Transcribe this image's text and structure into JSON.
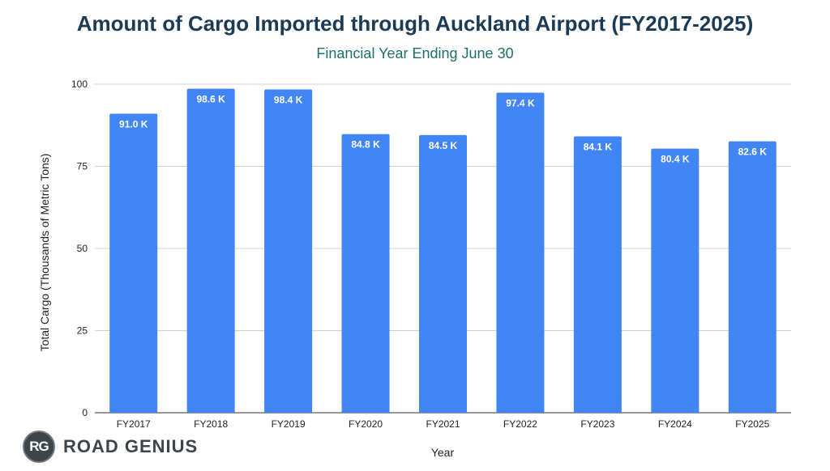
{
  "chart_data": {
    "type": "bar",
    "title": "Amount of Cargo Imported through Auckland Airport (FY2017-2025)",
    "subtitle": "Financial Year Ending June 30",
    "xlabel": "Year",
    "ylabel": "Total Cargo (Thousands of Metric Tons)",
    "categories": [
      "FY2017",
      "FY2018",
      "FY2019",
      "FY2020",
      "FY2021",
      "FY2022",
      "FY2023",
      "FY2024",
      "FY2025"
    ],
    "values": [
      91.0,
      98.6,
      98.4,
      84.8,
      84.5,
      97.4,
      84.1,
      80.4,
      82.6
    ],
    "data_labels": [
      "91.0 K",
      "98.6 K",
      "98.4 K",
      "84.8 K",
      "84.5 K",
      "97.4 K",
      "84.1 K",
      "80.4 K",
      "82.6 K"
    ],
    "ylim": [
      0,
      100
    ],
    "yticks": [
      0,
      25,
      50,
      75,
      100
    ],
    "grid": true,
    "legend": "none",
    "bar_color": "#4285f4"
  },
  "branding": {
    "logo_mark": "RG",
    "logo_text": "ROAD GENIUS"
  }
}
